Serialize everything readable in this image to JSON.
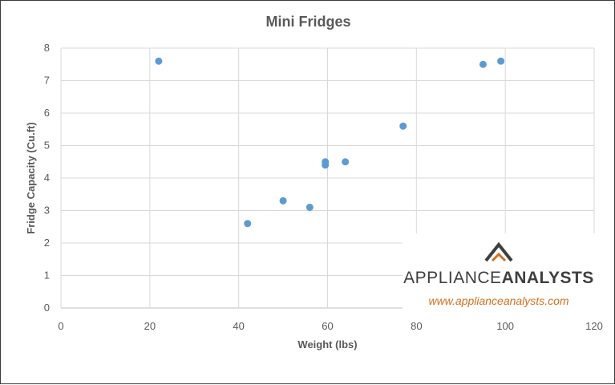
{
  "chart_data": {
    "type": "scatter",
    "title": "Mini Fridges",
    "xlabel": "Weight (lbs)",
    "ylabel": "Fridge Capacity (Cu.ft)",
    "xlim": [
      0,
      120
    ],
    "ylim": [
      0,
      8
    ],
    "x_ticks": [
      "0",
      "20",
      "40",
      "60",
      "80",
      "100",
      "120"
    ],
    "y_ticks": [
      "0",
      "1",
      "2",
      "3",
      "4",
      "5",
      "6",
      "7",
      "8"
    ],
    "grid": true,
    "legend": "none",
    "marker_color": "#5b9bd5",
    "points": [
      {
        "x": 22,
        "y": 7.6
      },
      {
        "x": 42,
        "y": 2.6
      },
      {
        "x": 50,
        "y": 3.3
      },
      {
        "x": 56,
        "y": 3.1
      },
      {
        "x": 59.5,
        "y": 4.5
      },
      {
        "x": 59.5,
        "y": 4.4
      },
      {
        "x": 64,
        "y": 4.5
      },
      {
        "x": 77,
        "y": 5.6
      },
      {
        "x": 95,
        "y": 7.5
      },
      {
        "x": 99,
        "y": 7.6
      }
    ]
  },
  "watermark": {
    "brand_light": "APPLIANCE",
    "brand_bold": "ANALYSTS",
    "url": "www.applianceanalysts.com",
    "brand_color": "#3f3f3f",
    "url_color": "#d1711f"
  }
}
